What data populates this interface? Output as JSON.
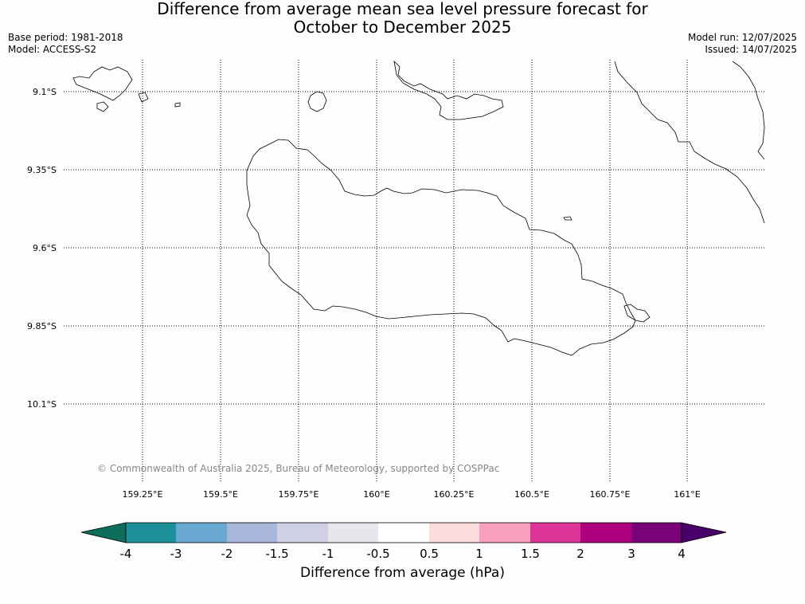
{
  "title": {
    "line1": "Difference from average mean sea level pressure forecast for",
    "line2": "October to December 2025"
  },
  "meta_left": {
    "base_period": "Base period: 1981-2018",
    "model": "Model: ACCESS-S2"
  },
  "meta_right": {
    "model_run": "Model run: 12/07/2025",
    "issued": "Issued: 14/07/2025"
  },
  "map": {
    "lat_labels": [
      "9.1°S",
      "9.35°S",
      "9.6°S",
      "9.85°S",
      "10.1°S"
    ],
    "lon_labels": [
      "159.25°E",
      "159.5°E",
      "159.75°E",
      "160°E",
      "160.25°E",
      "160.5°E",
      "160.75°E",
      "161°E"
    ],
    "copyright": "© Commonwealth of Australia 2025, Bureau of Meteorology, supported by COSPPac"
  },
  "colorbar": {
    "title": "Difference from average (hPa)",
    "tick_labels": [
      "-4",
      "-3",
      "-2",
      "-1.5",
      "-1",
      "-0.5",
      "0.5",
      "1",
      "1.5",
      "2",
      "3",
      "4"
    ],
    "colors": [
      "#0e6e5c",
      "#1c9199",
      "#69a9d1",
      "#a7b7da",
      "#cfd0e6",
      "#e8e6ec",
      "#ffffff",
      "#fcdcdc",
      "#f6a0bc",
      "#dd3497",
      "#ae017e",
      "#7a0177",
      "#49006a"
    ]
  }
}
